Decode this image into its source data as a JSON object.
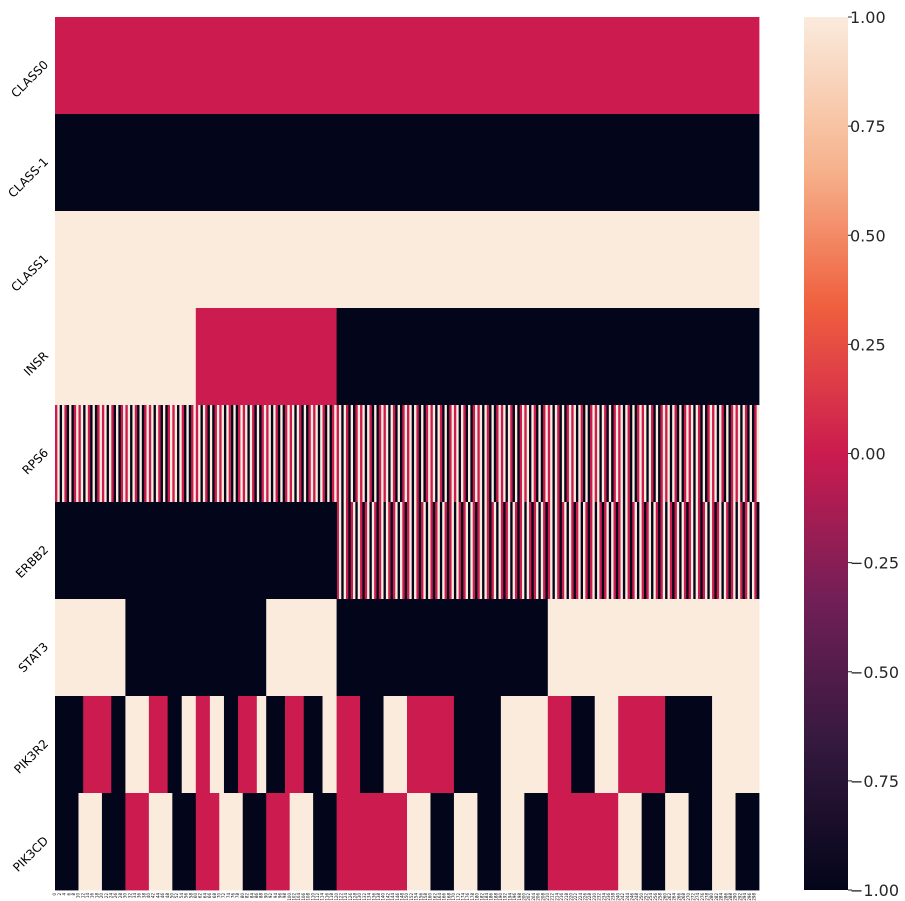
{
  "chart_data": {
    "type": "heatmap",
    "title": "",
    "xlabel": "",
    "ylabel": "",
    "rows": [
      "CLASS0",
      "CLASS-1",
      "CLASS1",
      "INSR",
      "RPS6",
      "ERBB2",
      "STAT3",
      "PIK3R2",
      "PIK3CD"
    ],
    "x_tick_step": 2,
    "n_columns": 300,
    "value_range": [
      -1.0,
      1.0
    ],
    "colormap": "rocket",
    "colors": [
      "#03051a",
      "#4c1d4b",
      "#a11a5b",
      "#cb1b4f",
      "#f0603e",
      "#f6b48e",
      "#faebdd"
    ],
    "colorbar": {
      "ticks": [
        1.0,
        0.75,
        0.5,
        0.25,
        0.0,
        -0.25,
        -0.5,
        -0.75,
        -1.0
      ],
      "tick_labels": [
        "1.00",
        "0.75",
        "0.50",
        "0.25",
        "0.00",
        "−0.25",
        "−0.50",
        "−0.75",
        "−1.00"
      ]
    },
    "row_segments": [
      [
        [
          0,
          300,
          0
        ]
      ],
      [
        [
          0,
          300,
          -1
        ]
      ],
      [
        [
          0,
          300,
          1
        ]
      ],
      [
        [
          0,
          60,
          1
        ],
        [
          60,
          120,
          0
        ],
        [
          120,
          300,
          -1
        ]
      ],
      [],
      [
        [
          0,
          120,
          -1
        ]
      ],
      [
        [
          0,
          30,
          1
        ],
        [
          30,
          90,
          -1
        ],
        [
          90,
          120,
          1
        ],
        [
          120,
          210,
          -1
        ],
        [
          210,
          300,
          1
        ]
      ],
      [
        [
          0,
          12,
          -1
        ],
        [
          12,
          24,
          0
        ],
        [
          24,
          30,
          -1
        ],
        [
          30,
          40,
          1
        ],
        [
          40,
          48,
          0
        ],
        [
          48,
          54,
          -1
        ],
        [
          54,
          60,
          1
        ],
        [
          60,
          66,
          0
        ],
        [
          66,
          72,
          1
        ],
        [
          72,
          78,
          -1
        ],
        [
          78,
          86,
          0
        ],
        [
          86,
          90,
          1
        ],
        [
          90,
          98,
          -1
        ],
        [
          98,
          106,
          0
        ],
        [
          106,
          114,
          -1
        ],
        [
          114,
          120,
          1
        ],
        [
          120,
          130,
          0
        ],
        [
          130,
          140,
          -1
        ],
        [
          140,
          150,
          1
        ],
        [
          150,
          170,
          0
        ],
        [
          170,
          190,
          -1
        ],
        [
          190,
          210,
          1
        ],
        [
          210,
          220,
          0
        ],
        [
          220,
          230,
          -1
        ],
        [
          230,
          240,
          1
        ],
        [
          240,
          260,
          0
        ],
        [
          260,
          280,
          -1
        ],
        [
          280,
          300,
          1
        ]
      ],
      [
        [
          0,
          10,
          -1
        ],
        [
          10,
          20,
          1
        ],
        [
          20,
          30,
          -1
        ],
        [
          30,
          40,
          0
        ],
        [
          40,
          50,
          1
        ],
        [
          50,
          60,
          -1
        ],
        [
          60,
          70,
          0
        ],
        [
          70,
          80,
          1
        ],
        [
          80,
          90,
          -1
        ],
        [
          90,
          100,
          0
        ],
        [
          100,
          110,
          1
        ],
        [
          110,
          120,
          -1
        ],
        [
          120,
          150,
          0
        ],
        [
          150,
          160,
          1
        ],
        [
          160,
          170,
          -1
        ],
        [
          170,
          180,
          1
        ],
        [
          180,
          190,
          -1
        ],
        [
          190,
          200,
          1
        ],
        [
          200,
          210,
          -1
        ],
        [
          210,
          240,
          0
        ],
        [
          240,
          250,
          1
        ],
        [
          250,
          260,
          -1
        ],
        [
          260,
          270,
          1
        ],
        [
          270,
          280,
          -1
        ],
        [
          280,
          290,
          1
        ],
        [
          290,
          300,
          -1
        ]
      ]
    ],
    "row_patterns": [
      null,
      null,
      null,
      null,
      {
        "from": 0,
        "to": 300,
        "pattern": [
          0,
          1,
          -1,
          1,
          0,
          -1,
          1,
          -1,
          0,
          1
        ]
      },
      {
        "from": 120,
        "to": 300,
        "pattern": [
          0,
          1,
          -1,
          1,
          0,
          -1
        ]
      },
      null,
      null,
      null
    ]
  }
}
